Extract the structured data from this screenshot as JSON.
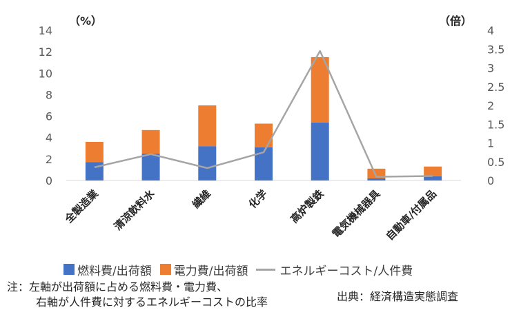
{
  "chart_data": {
    "type": "bar",
    "stacked": true,
    "categories": [
      "全製造業",
      "清涼飲料水",
      "繊維",
      "化学",
      "高炉製鉄",
      "電気機械器具",
      "自動車/付属品"
    ],
    "series": [
      {
        "name": "燃料費/出荷額",
        "axis": "left",
        "type": "bar",
        "color": "#4472c4",
        "values": [
          1.7,
          2.5,
          3.2,
          3.1,
          5.4,
          0.2,
          0.4
        ]
      },
      {
        "name": "電力費/出荷額",
        "axis": "left",
        "type": "bar",
        "color": "#ed7d31",
        "values": [
          1.9,
          2.2,
          3.8,
          2.2,
          6.1,
          0.9,
          0.9
        ]
      },
      {
        "name": "エネルギーコスト/人件費",
        "axis": "right",
        "type": "line",
        "color": "#a5a5a5",
        "values": [
          0.35,
          0.7,
          0.33,
          0.75,
          3.45,
          0.1,
          0.12
        ]
      }
    ],
    "y_left": {
      "unit": "（%）",
      "min": 0,
      "max": 14,
      "ticks": [
        "0",
        "2",
        "4",
        "6",
        "8",
        "10",
        "12",
        "14"
      ]
    },
    "y_right": {
      "unit": "（倍）",
      "min": 0,
      "max": 4,
      "ticks": [
        "0",
        "0.5",
        "1",
        "1.5",
        "2",
        "2.5",
        "3",
        "3.5",
        "4"
      ]
    },
    "grid": false,
    "legend_position": "bottom"
  },
  "legend": [
    {
      "label": "燃料費/出荷額",
      "color": "#4472c4",
      "kind": "box"
    },
    {
      "label": "電力費/出荷額",
      "color": "#ed7d31",
      "kind": "box"
    },
    {
      "label": "エネルギーコスト/人件費",
      "color": "#a5a5a5",
      "kind": "line"
    }
  ],
  "note": {
    "line1": "注：左軸が出荷額に占める燃料費・電力費、",
    "line2": "右軸が人件費に対するエネルギーコストの比率"
  },
  "source": "出典：経済構造実態調査"
}
